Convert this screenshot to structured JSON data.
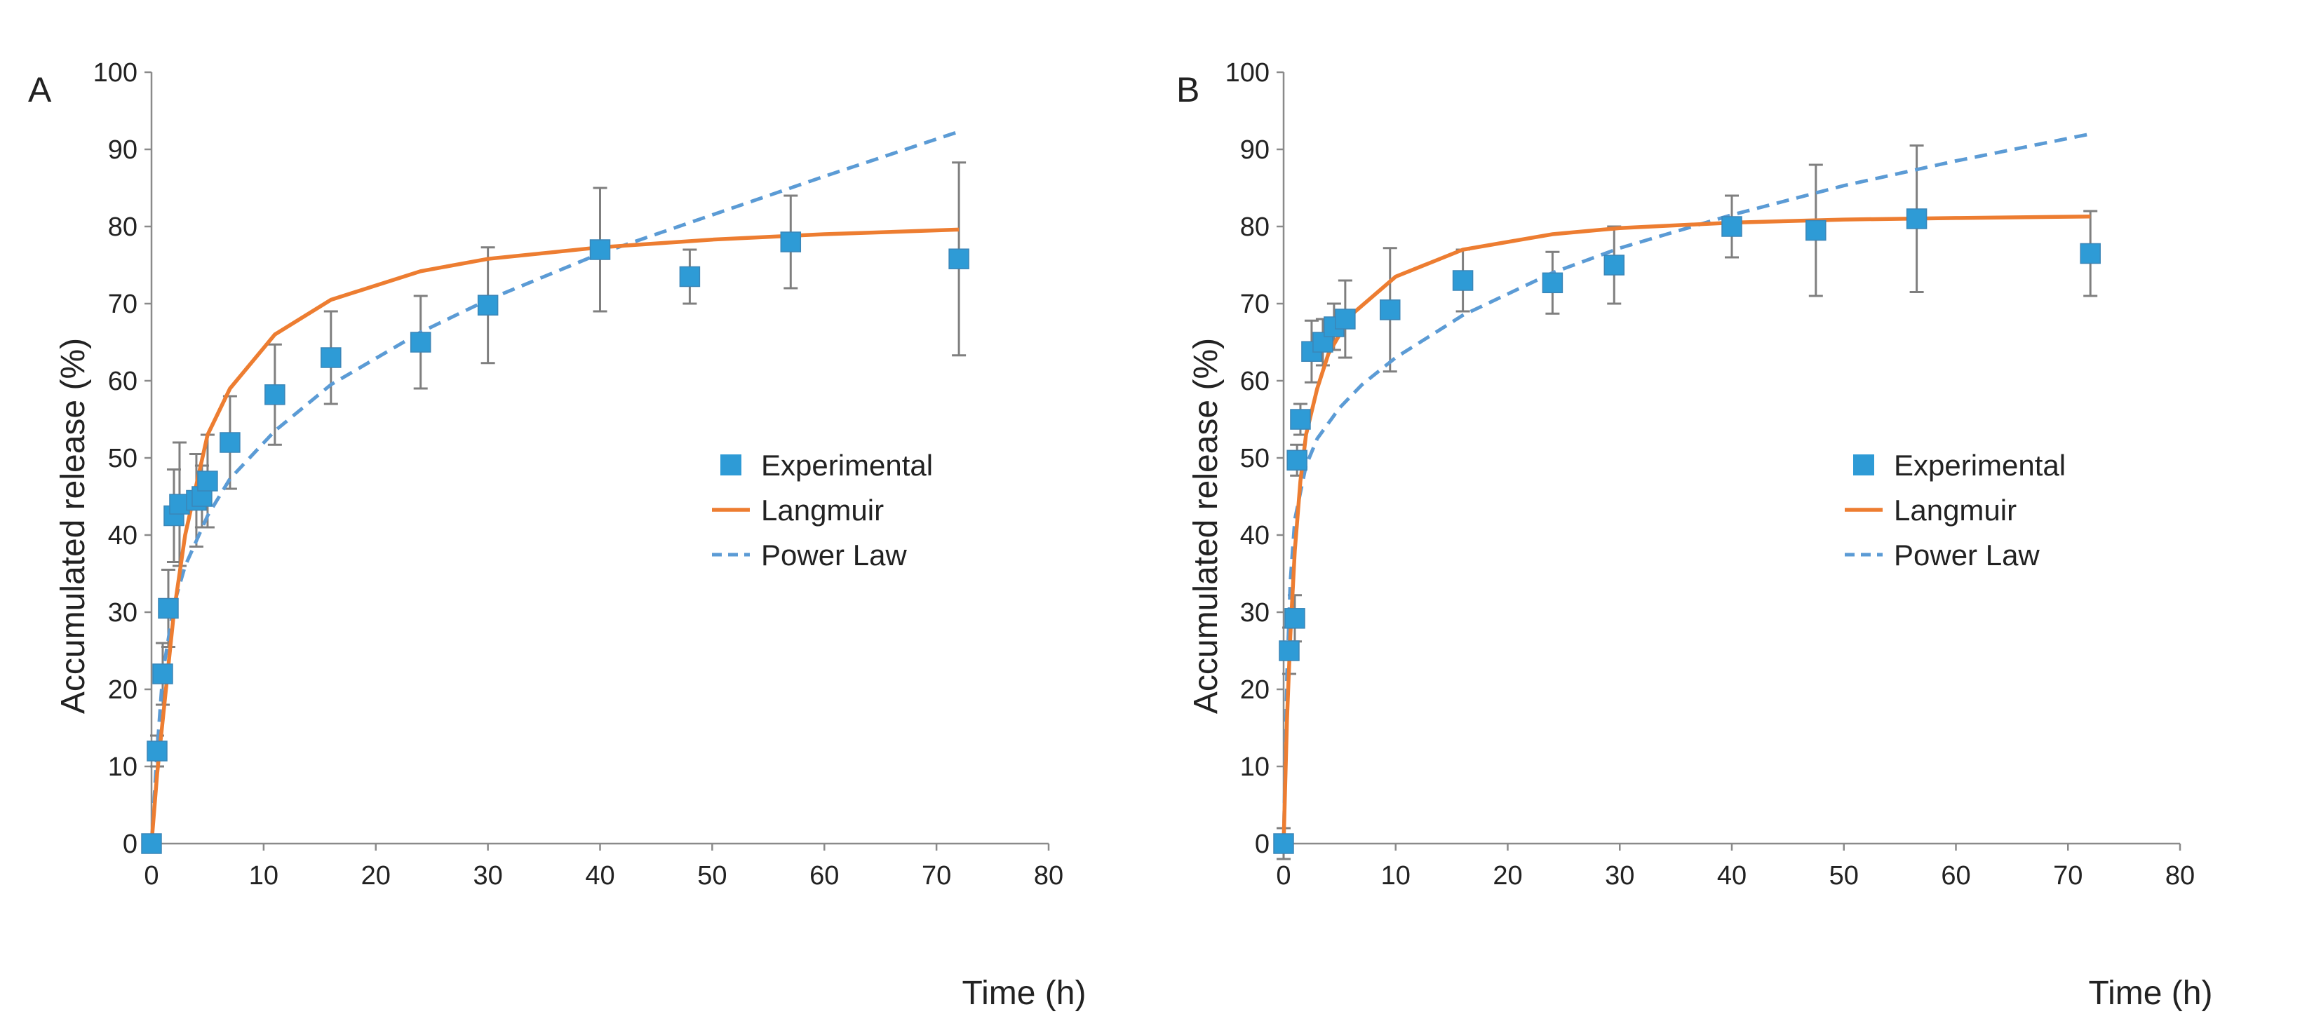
{
  "figure": {
    "chart_data": [
      {
        "panel": "A",
        "type": "scatter",
        "title": "",
        "xlabel": "Time (h)",
        "ylabel": "Accumulated release (%)",
        "xlim": [
          0,
          80
        ],
        "ylim": [
          0,
          100
        ],
        "xticks": [
          0,
          10,
          20,
          30,
          40,
          50,
          60,
          70,
          80
        ],
        "yticks": [
          0,
          10,
          20,
          30,
          40,
          50,
          60,
          70,
          80,
          90,
          100
        ],
        "grid": false,
        "legend_position": "right-middle",
        "series": [
          {
            "name": "Experimental",
            "kind": "points-with-error-bars",
            "color": "#2e9bd6",
            "points": [
              {
                "x": 0,
                "y": 0,
                "err": 1
              },
              {
                "x": 0.5,
                "y": 12,
                "err": 2
              },
              {
                "x": 1,
                "y": 22,
                "err": 4
              },
              {
                "x": 1.5,
                "y": 30.5,
                "err": 5
              },
              {
                "x": 2,
                "y": 42.5,
                "err": 6
              },
              {
                "x": 2.5,
                "y": 44,
                "err": 8
              },
              {
                "x": 4,
                "y": 44.5,
                "err": 6
              },
              {
                "x": 4.5,
                "y": 45,
                "err": 4
              },
              {
                "x": 5,
                "y": 47,
                "err": 6
              },
              {
                "x": 7,
                "y": 52,
                "err": 6
              },
              {
                "x": 11,
                "y": 58.2,
                "err": 6.5
              },
              {
                "x": 16,
                "y": 63,
                "err": 6
              },
              {
                "x": 24,
                "y": 65,
                "err": 6
              },
              {
                "x": 30,
                "y": 69.8,
                "err": 7.5
              },
              {
                "x": 40,
                "y": 77,
                "err": 8
              },
              {
                "x": 48,
                "y": 73.5,
                "err": 3.5
              },
              {
                "x": 57,
                "y": 78,
                "err": 6
              },
              {
                "x": 72,
                "y": 75.8,
                "err": 12.5
              }
            ]
          },
          {
            "name": "Langmuir",
            "kind": "line",
            "color": "#ed7d31",
            "points": [
              {
                "x": 0,
                "y": 0
              },
              {
                "x": 0.5,
                "y": 9
              },
              {
                "x": 1,
                "y": 16
              },
              {
                "x": 2,
                "y": 30
              },
              {
                "x": 3,
                "y": 40
              },
              {
                "x": 5,
                "y": 53
              },
              {
                "x": 7,
                "y": 59
              },
              {
                "x": 11,
                "y": 66
              },
              {
                "x": 16,
                "y": 70.5
              },
              {
                "x": 24,
                "y": 74.2
              },
              {
                "x": 30,
                "y": 75.8
              },
              {
                "x": 40,
                "y": 77.3
              },
              {
                "x": 50,
                "y": 78.3
              },
              {
                "x": 60,
                "y": 79
              },
              {
                "x": 72,
                "y": 79.6
              }
            ]
          },
          {
            "name": "Power Law",
            "kind": "dashed-line",
            "color": "#5b9bd5",
            "points": [
              {
                "x": 0,
                "y": 0
              },
              {
                "x": 0.5,
                "y": 12
              },
              {
                "x": 1,
                "y": 22
              },
              {
                "x": 2,
                "y": 31
              },
              {
                "x": 3,
                "y": 36
              },
              {
                "x": 5,
                "y": 42.5
              },
              {
                "x": 7,
                "y": 47.3
              },
              {
                "x": 11,
                "y": 53.5
              },
              {
                "x": 16,
                "y": 59.5
              },
              {
                "x": 24,
                "y": 66.3
              },
              {
                "x": 30,
                "y": 70.5
              },
              {
                "x": 40,
                "y": 76.5
              },
              {
                "x": 50,
                "y": 81.5
              },
              {
                "x": 60,
                "y": 86.5
              },
              {
                "x": 72,
                "y": 92.3
              }
            ]
          }
        ]
      },
      {
        "panel": "B",
        "type": "scatter",
        "title": "",
        "xlabel": "Time (h)",
        "ylabel": "Accumulated release (%)",
        "xlim": [
          0,
          80
        ],
        "ylim": [
          0,
          100
        ],
        "xticks": [
          0,
          10,
          20,
          30,
          40,
          50,
          60,
          70,
          80
        ],
        "yticks": [
          0,
          10,
          20,
          30,
          40,
          50,
          60,
          70,
          80,
          90,
          100
        ],
        "grid": false,
        "legend_position": "right-middle",
        "series": [
          {
            "name": "Experimental",
            "kind": "points-with-error-bars",
            "color": "#2e9bd6",
            "points": [
              {
                "x": 0,
                "y": 0,
                "err": 2
              },
              {
                "x": 0.5,
                "y": 25,
                "err": 3
              },
              {
                "x": 1,
                "y": 29.2,
                "err": 3
              },
              {
                "x": 1.2,
                "y": 49.7,
                "err": 2
              },
              {
                "x": 1.5,
                "y": 55,
                "err": 2
              },
              {
                "x": 2.5,
                "y": 63.8,
                "err": 4
              },
              {
                "x": 3.5,
                "y": 65,
                "err": 3
              },
              {
                "x": 4.5,
                "y": 67,
                "err": 3
              },
              {
                "x": 5.5,
                "y": 68,
                "err": 5
              },
              {
                "x": 9.5,
                "y": 69.2,
                "err": 8
              },
              {
                "x": 16,
                "y": 73,
                "err": 4
              },
              {
                "x": 24,
                "y": 72.7,
                "err": 4
              },
              {
                "x": 29.5,
                "y": 75,
                "err": 5
              },
              {
                "x": 40,
                "y": 80,
                "err": 4
              },
              {
                "x": 47.5,
                "y": 79.5,
                "err": 8.5
              },
              {
                "x": 56.5,
                "y": 81,
                "err": 9.5
              },
              {
                "x": 72,
                "y": 76.5,
                "err": 5.5
              }
            ]
          },
          {
            "name": "Langmuir",
            "kind": "line",
            "color": "#ed7d31",
            "points": [
              {
                "x": 0,
                "y": 0
              },
              {
                "x": 0.3,
                "y": 16
              },
              {
                "x": 0.6,
                "y": 27
              },
              {
                "x": 1,
                "y": 38
              },
              {
                "x": 1.5,
                "y": 47
              },
              {
                "x": 2,
                "y": 53
              },
              {
                "x": 3,
                "y": 59
              },
              {
                "x": 4,
                "y": 63.5
              },
              {
                "x": 6,
                "y": 68.5
              },
              {
                "x": 10,
                "y": 73.5
              },
              {
                "x": 16,
                "y": 77
              },
              {
                "x": 24,
                "y": 79
              },
              {
                "x": 30,
                "y": 79.8
              },
              {
                "x": 40,
                "y": 80.5
              },
              {
                "x": 50,
                "y": 80.9
              },
              {
                "x": 60,
                "y": 81.1
              },
              {
                "x": 72,
                "y": 81.3
              }
            ]
          },
          {
            "name": "Power Law",
            "kind": "dashed-line",
            "color": "#5b9bd5",
            "points": [
              {
                "x": 0,
                "y": 0
              },
              {
                "x": 0.3,
                "y": 22
              },
              {
                "x": 0.6,
                "y": 34
              },
              {
                "x": 1,
                "y": 42
              },
              {
                "x": 2,
                "y": 49
              },
              {
                "x": 3,
                "y": 52.5
              },
              {
                "x": 5,
                "y": 56.5
              },
              {
                "x": 7,
                "y": 59.5
              },
              {
                "x": 10,
                "y": 63
              },
              {
                "x": 16,
                "y": 68.5
              },
              {
                "x": 24,
                "y": 74
              },
              {
                "x": 30,
                "y": 77.2
              },
              {
                "x": 40,
                "y": 81.5
              },
              {
                "x": 50,
                "y": 85.3
              },
              {
                "x": 60,
                "y": 88.5
              },
              {
                "x": 72,
                "y": 92
              }
            ]
          }
        ]
      }
    ]
  }
}
